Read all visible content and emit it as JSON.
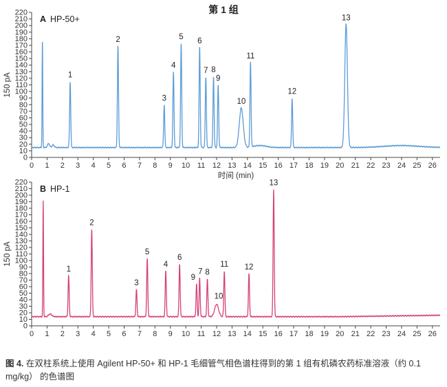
{
  "page_title": "第 1 组",
  "caption": {
    "figure_label": "图 4.",
    "text": "在双柱系统上使用 Agilent HP-50+ 和 HP-1 毛细管气相色谱柱得到的第 1 组有机磷农药标准溶液（约 0.1 mg/kg） 的色谱图"
  },
  "chart_data": [
    {
      "type": "line",
      "panel_letter": "A",
      "title": "HP-50+",
      "xlabel": "时间 (min)",
      "ylabel": "150 pA",
      "xlim": [
        0,
        26.5
      ],
      "ylim": [
        0,
        220
      ],
      "xticks": [
        0,
        1,
        2,
        3,
        4,
        5,
        6,
        7,
        8,
        9,
        10,
        11,
        12,
        13,
        14,
        15,
        16,
        17,
        18,
        19,
        20,
        21,
        22,
        23,
        24,
        25,
        26
      ],
      "yticks": [
        0,
        10,
        20,
        30,
        40,
        50,
        60,
        70,
        80,
        90,
        100,
        110,
        120,
        130,
        140,
        150,
        160,
        170,
        180,
        190,
        200,
        210,
        220
      ],
      "color": "#5b9bd5",
      "baseline": 15,
      "solvent_peak": {
        "x": 0.7,
        "height": 178
      },
      "peaks": [
        {
          "label": "1",
          "x": 2.5,
          "height": 115
        },
        {
          "label": "2",
          "x": 5.6,
          "height": 169
        },
        {
          "label": "3",
          "x": 8.6,
          "height": 80
        },
        {
          "label": "4",
          "x": 9.2,
          "height": 130
        },
        {
          "label": "5",
          "x": 9.7,
          "height": 173
        },
        {
          "label": "6",
          "x": 10.9,
          "height": 167
        },
        {
          "label": "7",
          "x": 11.3,
          "height": 122
        },
        {
          "label": "8",
          "x": 11.8,
          "height": 123
        },
        {
          "label": "9",
          "x": 12.1,
          "height": 110
        },
        {
          "label": "10",
          "x": 13.6,
          "height": 75
        },
        {
          "label": "11",
          "x": 14.2,
          "height": 144
        },
        {
          "label": "12",
          "x": 16.9,
          "height": 90
        },
        {
          "label": "13",
          "x": 20.4,
          "height": 202
        }
      ]
    },
    {
      "type": "line",
      "panel_letter": "B",
      "title": "HP-1",
      "xlabel": "",
      "ylabel": "150 pA",
      "xlim": [
        0,
        26.5
      ],
      "ylim": [
        0,
        220
      ],
      "xticks": [
        0,
        1,
        2,
        3,
        4,
        5,
        6,
        7,
        8,
        9,
        10,
        11,
        12,
        13,
        14,
        15,
        16,
        17,
        18,
        19,
        20,
        21,
        22,
        23,
        24,
        25,
        26
      ],
      "yticks": [
        0,
        10,
        20,
        30,
        40,
        50,
        60,
        70,
        80,
        90,
        100,
        110,
        120,
        130,
        140,
        150,
        160,
        170,
        180,
        190,
        200,
        210,
        220
      ],
      "color": "#d63f77",
      "baseline": 14,
      "solvent_peak": {
        "x": 0.75,
        "height": 192
      },
      "peaks": [
        {
          "label": "1",
          "x": 2.4,
          "height": 77
        },
        {
          "label": "2",
          "x": 3.9,
          "height": 148
        },
        {
          "label": "3",
          "x": 6.8,
          "height": 56
        },
        {
          "label": "5",
          "x": 7.5,
          "height": 103
        },
        {
          "label": "4",
          "x": 8.7,
          "height": 84
        },
        {
          "label": "6",
          "x": 9.6,
          "height": 95
        },
        {
          "label": "7",
          "x": 10.9,
          "height": 73
        },
        {
          "label": "9",
          "x": 10.7,
          "height": 64
        },
        {
          "label": "8",
          "x": 11.4,
          "height": 72
        },
        {
          "label": "10",
          "x": 12.0,
          "height": 33
        },
        {
          "label": "11",
          "x": 12.5,
          "height": 84
        },
        {
          "label": "12",
          "x": 14.1,
          "height": 80
        },
        {
          "label": "13",
          "x": 15.7,
          "height": 209
        }
      ]
    }
  ]
}
